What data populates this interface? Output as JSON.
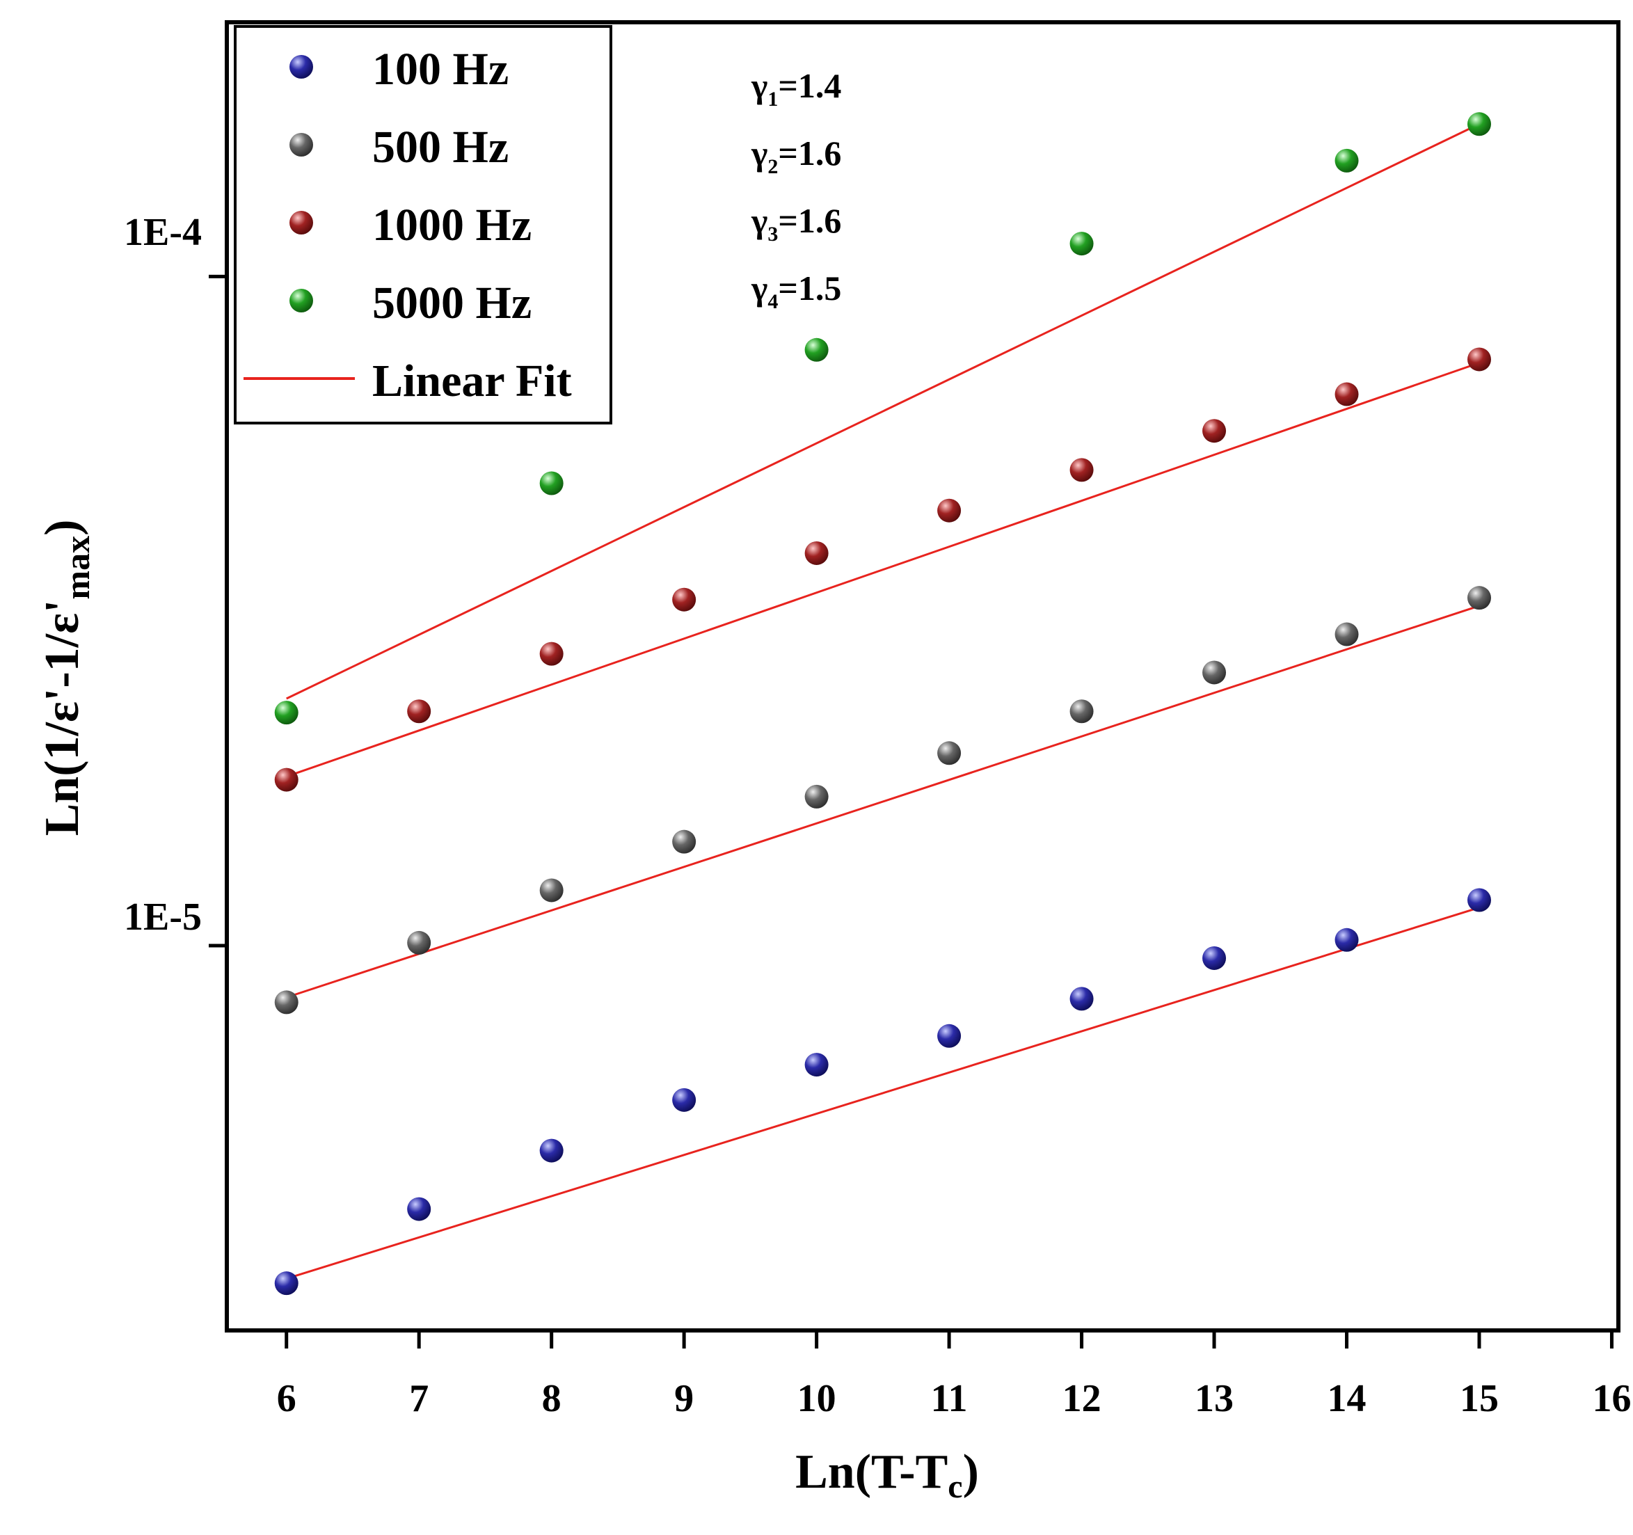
{
  "chart_data": {
    "type": "scatter",
    "xlabel": "Ln(T-T",
    "xlabel_sub": "c",
    "xlabel_close": ")",
    "ylabel": "Ln(1/ε'-1/ε'",
    "ylabel_sub": "max",
    "ylabel_close": ")",
    "xlim": [
      5.55,
      16.05
    ],
    "ylim_log10": [
      -5.575,
      -3.62
    ],
    "x_ticks": [
      6,
      7,
      8,
      9,
      10,
      11,
      12,
      13,
      14,
      15,
      16
    ],
    "x_tick_labels": [
      "6",
      "7",
      "8",
      "9",
      "10",
      "11",
      "12",
      "13",
      "14",
      "15",
      "16"
    ],
    "y_ticks": [
      1e-05,
      0.0001
    ],
    "y_tick_labels": [
      "1E-5",
      "1E-4"
    ],
    "series": [
      {
        "name": "100 Hz",
        "color": "#1a1a8c",
        "x": [
          6,
          7,
          8,
          9,
          10,
          11,
          12,
          13,
          14,
          15
        ],
        "y": [
          3.13e-06,
          4.04e-06,
          4.94e-06,
          5.88e-06,
          6.64e-06,
          7.33e-06,
          8.33e-06,
          9.58e-06,
          1.02e-05,
          1.17e-05
        ]
      },
      {
        "name": "500 Hz",
        "color": "#555555",
        "x": [
          6,
          7,
          8,
          9,
          10,
          11,
          12,
          13,
          14,
          15
        ],
        "y": [
          8.23e-06,
          1.01e-05,
          1.21e-05,
          1.43e-05,
          1.67e-05,
          1.94e-05,
          2.24e-05,
          2.56e-05,
          2.92e-05,
          3.31e-05
        ]
      },
      {
        "name": "1000 Hz",
        "color": "#8b1a1a",
        "x": [
          6,
          7,
          8,
          9,
          10,
          11,
          12,
          13,
          14,
          15
        ],
        "y": [
          1.77e-05,
          2.24e-05,
          2.73e-05,
          3.29e-05,
          3.86e-05,
          4.47e-05,
          5.14e-05,
          5.88e-05,
          6.67e-05,
          7.52e-05
        ]
      },
      {
        "name": "5000 Hz",
        "color": "#1c8c1c",
        "x": [
          6,
          8,
          10,
          12,
          14,
          15
        ],
        "y": [
          2.23e-05,
          4.91e-05,
          7.77e-05,
          0.000112,
          0.000149,
          0.000169
        ]
      }
    ],
    "fits": [
      {
        "name": "Linear Fit",
        "series": "100 Hz",
        "x": [
          6,
          15
        ],
        "y": [
          3.18e-06,
          1.14e-05
        ]
      },
      {
        "name": "Linear Fit",
        "series": "500 Hz",
        "x": [
          6,
          15
        ],
        "y": [
          8.37e-06,
          3.22e-05
        ]
      },
      {
        "name": "Linear Fit",
        "series": "1000 Hz",
        "x": [
          6,
          15
        ],
        "y": [
          1.79e-05,
          7.43e-05
        ]
      },
      {
        "name": "Linear Fit",
        "series": "5000 Hz",
        "x": [
          6,
          15
        ],
        "y": [
          2.34e-05,
          0.000169
        ]
      }
    ],
    "fit_color": "#e8231e",
    "legend": {
      "placement": "top-left",
      "entries": [
        "100 Hz",
        "500 Hz",
        "1000 Hz",
        "5000 Hz",
        "Linear Fit"
      ]
    },
    "annotations": [
      {
        "symbol": "γ",
        "sub": "1",
        "value": "=1.4"
      },
      {
        "symbol": "γ",
        "sub": "2",
        "value": "=1.6"
      },
      {
        "symbol": "γ",
        "sub": "3",
        "value": "=1.6"
      },
      {
        "symbol": "γ",
        "sub": "4",
        "value": "=1.5"
      }
    ]
  }
}
